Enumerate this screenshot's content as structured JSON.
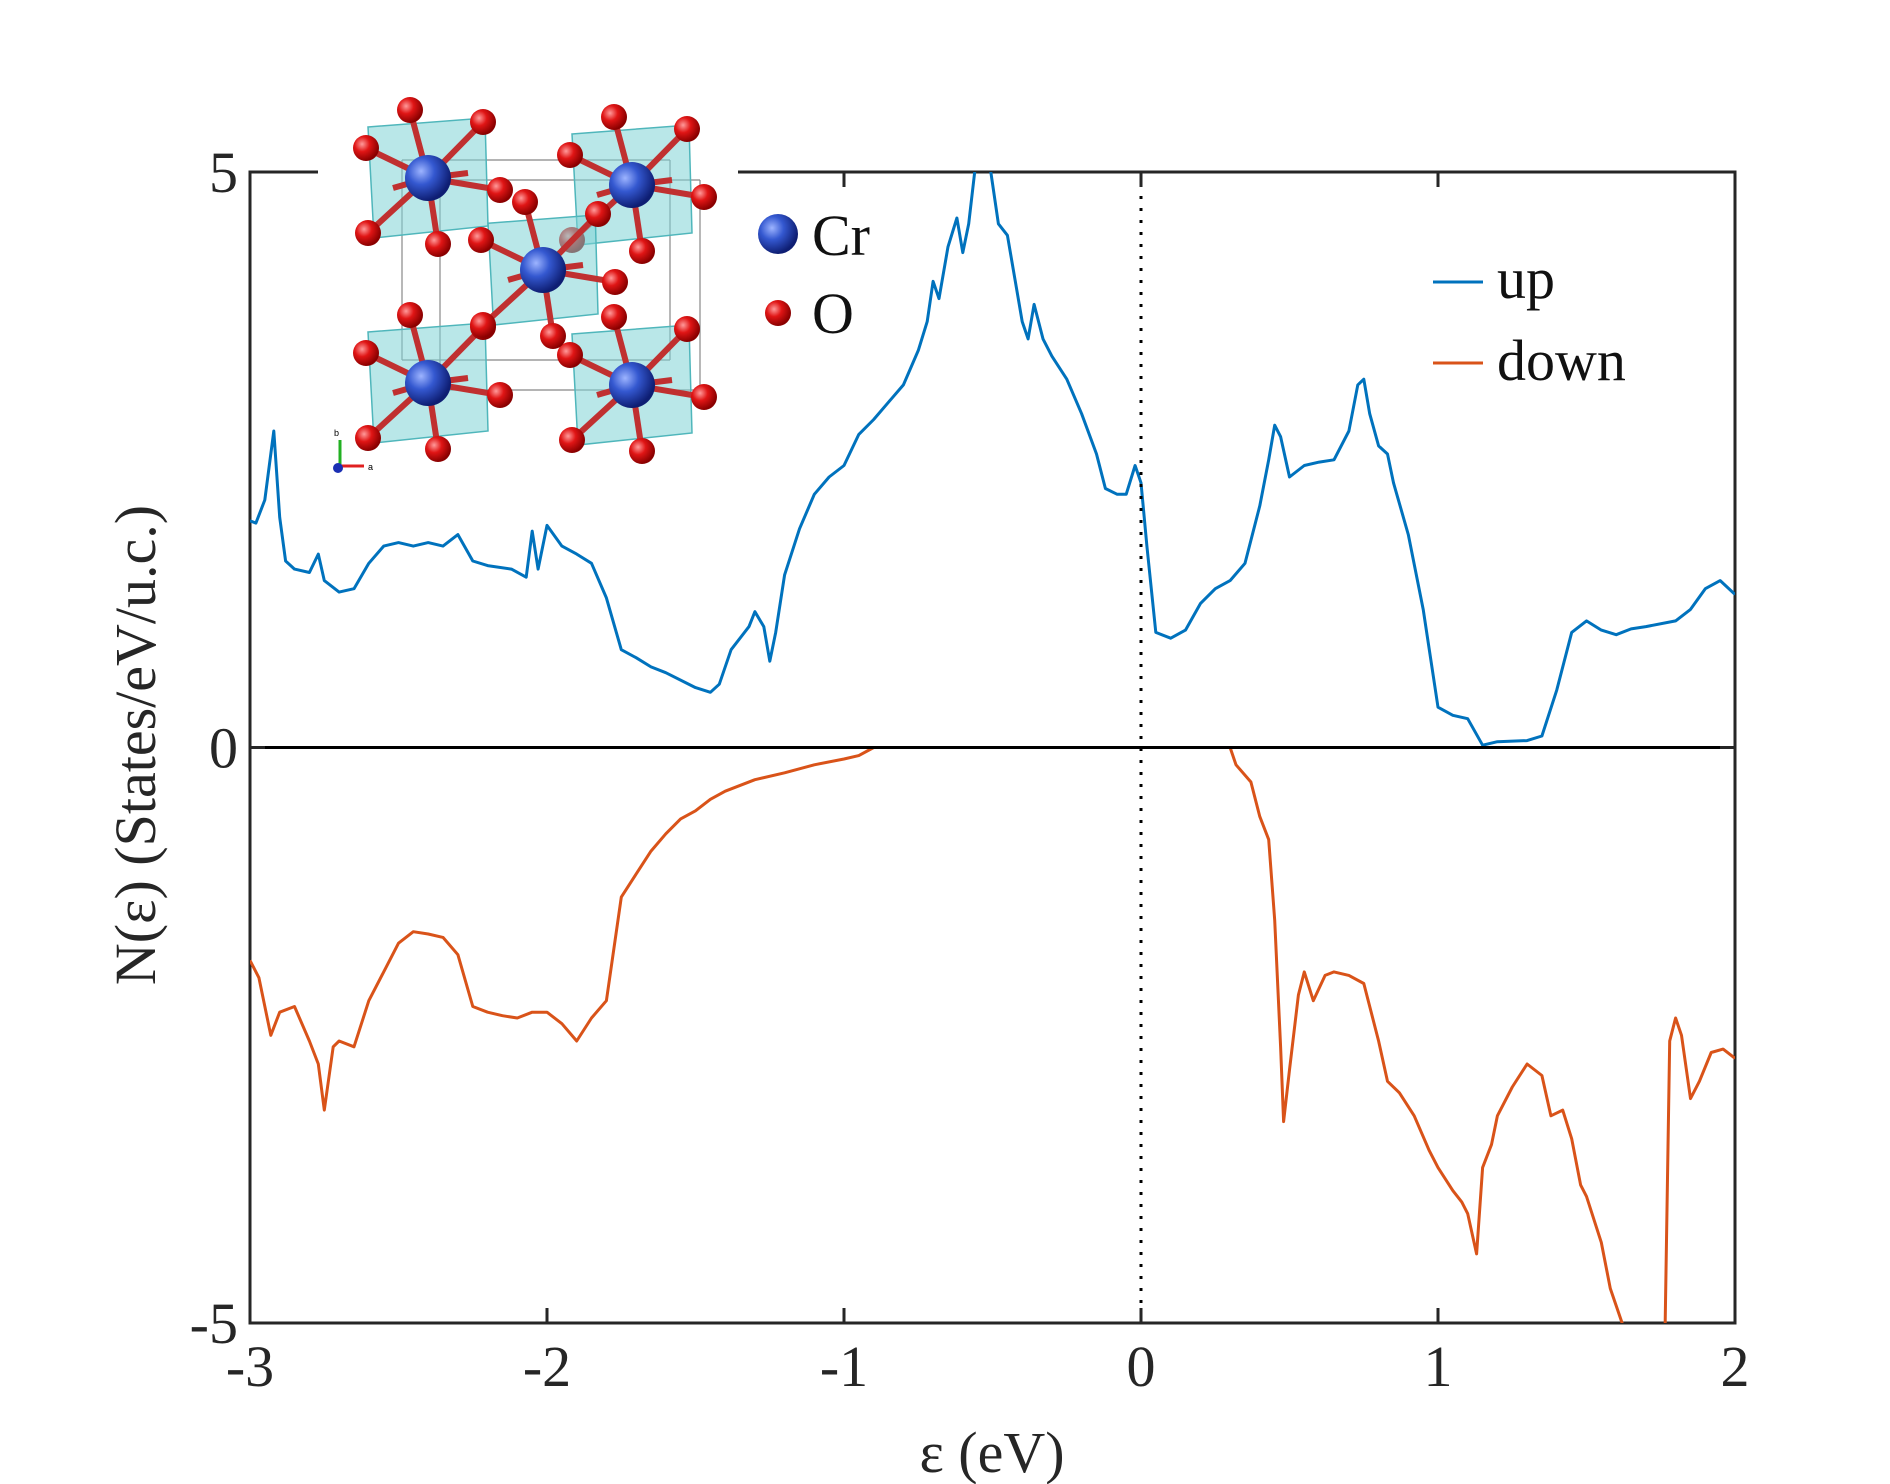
{
  "chart_data": {
    "type": "line",
    "xlabel": "ε (eV)",
    "ylabel": "N(ε)  (States/eV/u.c.)",
    "xlim": [
      -3,
      2
    ],
    "ylim": [
      -5,
      5
    ],
    "x_ticks": [
      "-3",
      "-2",
      "-1",
      "0",
      "1",
      "2"
    ],
    "y_ticks": [
      "-5",
      "0",
      "5"
    ],
    "fermi_level_x": 0,
    "grid": false,
    "legend_position": "top-right",
    "series": [
      {
        "name": "up",
        "color": "#0072BD",
        "points": [
          [
            -3.0,
            1.97
          ],
          [
            -2.98,
            1.95
          ],
          [
            -2.95,
            2.15
          ],
          [
            -2.92,
            2.75
          ],
          [
            -2.9,
            2.0
          ],
          [
            -2.88,
            1.62
          ],
          [
            -2.85,
            1.55
          ],
          [
            -2.8,
            1.52
          ],
          [
            -2.77,
            1.68
          ],
          [
            -2.75,
            1.45
          ],
          [
            -2.7,
            1.35
          ],
          [
            -2.65,
            1.38
          ],
          [
            -2.6,
            1.6
          ],
          [
            -2.55,
            1.75
          ],
          [
            -2.5,
            1.78
          ],
          [
            -2.45,
            1.75
          ],
          [
            -2.4,
            1.78
          ],
          [
            -2.35,
            1.75
          ],
          [
            -2.3,
            1.85
          ],
          [
            -2.25,
            1.62
          ],
          [
            -2.2,
            1.58
          ],
          [
            -2.12,
            1.55
          ],
          [
            -2.07,
            1.48
          ],
          [
            -2.05,
            1.88
          ],
          [
            -2.03,
            1.55
          ],
          [
            -2.0,
            1.93
          ],
          [
            -1.95,
            1.75
          ],
          [
            -1.9,
            1.68
          ],
          [
            -1.85,
            1.6
          ],
          [
            -1.8,
            1.3
          ],
          [
            -1.75,
            0.85
          ],
          [
            -1.7,
            0.78
          ],
          [
            -1.65,
            0.7
          ],
          [
            -1.6,
            0.65
          ],
          [
            -1.5,
            0.52
          ],
          [
            -1.45,
            0.48
          ],
          [
            -1.42,
            0.55
          ],
          [
            -1.38,
            0.85
          ],
          [
            -1.32,
            1.05
          ],
          [
            -1.3,
            1.18
          ],
          [
            -1.27,
            1.05
          ],
          [
            -1.25,
            0.75
          ],
          [
            -1.23,
            1.0
          ],
          [
            -1.2,
            1.5
          ],
          [
            -1.15,
            1.9
          ],
          [
            -1.1,
            2.2
          ],
          [
            -1.05,
            2.35
          ],
          [
            -1.0,
            2.45
          ],
          [
            -0.95,
            2.72
          ],
          [
            -0.9,
            2.85
          ],
          [
            -0.85,
            3.0
          ],
          [
            -0.8,
            3.15
          ],
          [
            -0.75,
            3.45
          ],
          [
            -0.72,
            3.7
          ],
          [
            -0.7,
            4.05
          ],
          [
            -0.68,
            3.9
          ],
          [
            -0.65,
            4.35
          ],
          [
            -0.62,
            4.6
          ],
          [
            -0.6,
            4.3
          ],
          [
            -0.58,
            4.55
          ],
          [
            -0.56,
            5.0
          ],
          [
            -0.54,
            5.3
          ],
          [
            -0.52,
            5.25
          ],
          [
            -0.5,
            4.9
          ],
          [
            -0.48,
            4.55
          ],
          [
            -0.45,
            4.45
          ],
          [
            -0.42,
            4.0
          ],
          [
            -0.4,
            3.7
          ],
          [
            -0.38,
            3.55
          ],
          [
            -0.36,
            3.85
          ],
          [
            -0.33,
            3.55
          ],
          [
            -0.3,
            3.4
          ],
          [
            -0.25,
            3.2
          ],
          [
            -0.2,
            2.9
          ],
          [
            -0.15,
            2.55
          ],
          [
            -0.12,
            2.25
          ],
          [
            -0.08,
            2.2
          ],
          [
            -0.05,
            2.2
          ],
          [
            -0.02,
            2.45
          ],
          [
            0.0,
            2.3
          ],
          [
            0.02,
            1.75
          ],
          [
            0.05,
            1.0
          ],
          [
            0.1,
            0.95
          ],
          [
            0.15,
            1.02
          ],
          [
            0.2,
            1.25
          ],
          [
            0.25,
            1.38
          ],
          [
            0.3,
            1.45
          ],
          [
            0.35,
            1.6
          ],
          [
            0.4,
            2.1
          ],
          [
            0.43,
            2.5
          ],
          [
            0.45,
            2.8
          ],
          [
            0.47,
            2.7
          ],
          [
            0.5,
            2.35
          ],
          [
            0.55,
            2.45
          ],
          [
            0.6,
            2.48
          ],
          [
            0.65,
            2.5
          ],
          [
            0.7,
            2.75
          ],
          [
            0.73,
            3.15
          ],
          [
            0.75,
            3.2
          ],
          [
            0.77,
            2.9
          ],
          [
            0.8,
            2.62
          ],
          [
            0.83,
            2.55
          ],
          [
            0.85,
            2.3
          ],
          [
            0.9,
            1.85
          ],
          [
            0.95,
            1.2
          ],
          [
            1.0,
            0.35
          ],
          [
            1.05,
            0.28
          ],
          [
            1.1,
            0.25
          ],
          [
            1.15,
            0.02
          ],
          [
            1.2,
            0.05
          ],
          [
            1.3,
            0.06
          ],
          [
            1.35,
            0.1
          ],
          [
            1.4,
            0.5
          ],
          [
            1.45,
            1.0
          ],
          [
            1.5,
            1.1
          ],
          [
            1.55,
            1.02
          ],
          [
            1.6,
            0.98
          ],
          [
            1.65,
            1.03
          ],
          [
            1.7,
            1.05
          ],
          [
            1.8,
            1.1
          ],
          [
            1.85,
            1.2
          ],
          [
            1.9,
            1.38
          ],
          [
            1.95,
            1.45
          ],
          [
            2.0,
            1.33
          ]
        ]
      },
      {
        "name": "down",
        "color": "#D95319",
        "points": [
          [
            -3.0,
            -1.85
          ],
          [
            -2.97,
            -2.0
          ],
          [
            -2.93,
            -2.5
          ],
          [
            -2.9,
            -2.3
          ],
          [
            -2.85,
            -2.25
          ],
          [
            -2.8,
            -2.55
          ],
          [
            -2.77,
            -2.75
          ],
          [
            -2.75,
            -3.15
          ],
          [
            -2.72,
            -2.6
          ],
          [
            -2.7,
            -2.55
          ],
          [
            -2.65,
            -2.6
          ],
          [
            -2.6,
            -2.2
          ],
          [
            -2.55,
            -1.95
          ],
          [
            -2.5,
            -1.7
          ],
          [
            -2.45,
            -1.6
          ],
          [
            -2.4,
            -1.62
          ],
          [
            -2.35,
            -1.65
          ],
          [
            -2.3,
            -1.8
          ],
          [
            -2.25,
            -2.25
          ],
          [
            -2.2,
            -2.3
          ],
          [
            -2.15,
            -2.33
          ],
          [
            -2.1,
            -2.35
          ],
          [
            -2.05,
            -2.3
          ],
          [
            -2.0,
            -2.3
          ],
          [
            -1.95,
            -2.4
          ],
          [
            -1.9,
            -2.55
          ],
          [
            -1.85,
            -2.35
          ],
          [
            -1.8,
            -2.2
          ],
          [
            -1.75,
            -1.3
          ],
          [
            -1.7,
            -1.1
          ],
          [
            -1.65,
            -0.9
          ],
          [
            -1.6,
            -0.75
          ],
          [
            -1.55,
            -0.62
          ],
          [
            -1.5,
            -0.55
          ],
          [
            -1.45,
            -0.45
          ],
          [
            -1.4,
            -0.38
          ],
          [
            -1.3,
            -0.28
          ],
          [
            -1.2,
            -0.22
          ],
          [
            -1.1,
            -0.15
          ],
          [
            -1.0,
            -0.1
          ],
          [
            -0.95,
            -0.07
          ],
          [
            -0.9,
            0.0
          ],
          [
            -0.5,
            0.0
          ],
          [
            0.0,
            0.0
          ],
          [
            0.3,
            0.0
          ],
          [
            0.32,
            -0.15
          ],
          [
            0.37,
            -0.3
          ],
          [
            0.4,
            -0.6
          ],
          [
            0.43,
            -0.8
          ],
          [
            0.45,
            -1.5
          ],
          [
            0.47,
            -2.6
          ],
          [
            0.48,
            -3.25
          ],
          [
            0.5,
            -2.8
          ],
          [
            0.53,
            -2.15
          ],
          [
            0.55,
            -1.95
          ],
          [
            0.58,
            -2.2
          ],
          [
            0.62,
            -1.98
          ],
          [
            0.65,
            -1.95
          ],
          [
            0.7,
            -1.98
          ],
          [
            0.75,
            -2.05
          ],
          [
            0.8,
            -2.55
          ],
          [
            0.83,
            -2.9
          ],
          [
            0.87,
            -3.0
          ],
          [
            0.92,
            -3.2
          ],
          [
            0.97,
            -3.5
          ],
          [
            1.0,
            -3.65
          ],
          [
            1.05,
            -3.85
          ],
          [
            1.08,
            -3.95
          ],
          [
            1.1,
            -4.05
          ],
          [
            1.13,
            -4.4
          ],
          [
            1.15,
            -3.65
          ],
          [
            1.18,
            -3.45
          ],
          [
            1.2,
            -3.2
          ],
          [
            1.25,
            -2.95
          ],
          [
            1.3,
            -2.75
          ],
          [
            1.35,
            -2.85
          ],
          [
            1.38,
            -3.2
          ],
          [
            1.42,
            -3.15
          ],
          [
            1.45,
            -3.4
          ],
          [
            1.48,
            -3.8
          ],
          [
            1.5,
            -3.9
          ],
          [
            1.55,
            -4.3
          ],
          [
            1.58,
            -4.7
          ],
          [
            1.62,
            -5.0
          ],
          [
            1.65,
            -5.6
          ],
          [
            1.72,
            -6.0
          ],
          [
            1.76,
            -5.8
          ],
          [
            1.78,
            -2.55
          ],
          [
            1.8,
            -2.35
          ],
          [
            1.82,
            -2.5
          ],
          [
            1.85,
            -3.05
          ],
          [
            1.88,
            -2.9
          ],
          [
            1.92,
            -2.65
          ],
          [
            1.96,
            -2.62
          ],
          [
            2.0,
            -2.7
          ]
        ]
      }
    ]
  },
  "legend": {
    "items": [
      {
        "label": "up",
        "color": "#0072BD"
      },
      {
        "label": "down",
        "color": "#D95319"
      }
    ]
  },
  "inset": {
    "atoms": [
      {
        "label": "Cr",
        "color": "#1a2fb3"
      },
      {
        "label": "O",
        "color": "#e01010"
      }
    ],
    "axes_labels": {
      "b": "b",
      "a": "a"
    }
  }
}
